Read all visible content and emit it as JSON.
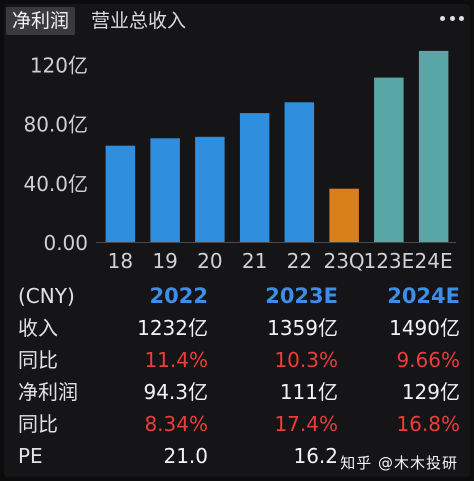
{
  "tabs": [
    {
      "label": "净利润",
      "active": true
    },
    {
      "label": "营业总收入",
      "active": false
    }
  ],
  "more_icon": "more-dots-icon",
  "chart_data": {
    "type": "bar",
    "categories": [
      "18",
      "19",
      "20",
      "21",
      "22",
      "23Q",
      "123E",
      "24E"
    ],
    "values": [
      65,
      70,
      71,
      87,
      94.3,
      36,
      111,
      129
    ],
    "bar_colors": [
      "#2f8fde",
      "#2f8fde",
      "#2f8fde",
      "#2f8fde",
      "#2f8fde",
      "#d9801a",
      "#58a6a6",
      "#58a6a6"
    ],
    "ytick_labels": [
      "0.00",
      "40.0亿",
      "80.0亿",
      "120亿"
    ],
    "yticks": [
      0,
      40,
      80,
      120
    ],
    "ylim": [
      0,
      133
    ],
    "grid": false
  },
  "table": {
    "header": [
      "(CNY)",
      "2022",
      "2023E",
      "2024E"
    ],
    "rows": [
      {
        "label": "收入",
        "values": [
          "1232亿",
          "1359亿",
          "1490亿"
        ],
        "style": "white"
      },
      {
        "label": "同比",
        "values": [
          "11.4%",
          "10.3%",
          "9.66%"
        ],
        "style": "red"
      },
      {
        "label": "净利润",
        "values": [
          "94.3亿",
          "111亿",
          "129亿"
        ],
        "style": "white"
      },
      {
        "label": "同比",
        "values": [
          "8.34%",
          "17.4%",
          "16.8%"
        ],
        "style": "red"
      },
      {
        "label": "PE",
        "values": [
          "21.0",
          "16.2",
          ""
        ],
        "style": "white"
      }
    ]
  },
  "watermark": "知乎 @木木投研"
}
